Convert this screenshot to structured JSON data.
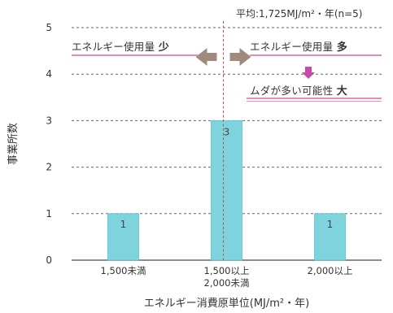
{
  "chart_data": {
    "type": "bar",
    "categories": [
      "1,500未満",
      "1,500以上\n2,000未満",
      "2,000以上"
    ],
    "values": [
      1,
      3,
      1
    ],
    "data_labels": [
      "1",
      "3",
      "1"
    ],
    "xlabel": "エネルギー消費原単位(MJ/m²・年)",
    "ylabel": "事業所数",
    "ylim": [
      0,
      5
    ],
    "yticks": [
      0,
      1,
      2,
      3,
      4,
      5
    ],
    "grid": true,
    "average": {
      "value": 1725,
      "note": "平均:1,725MJ/m²・年(n=5)"
    },
    "annotations": {
      "left": {
        "text": "エネルギー使用量",
        "emphasis": "少"
      },
      "right": {
        "text": "エネルギー使用量",
        "emphasis": "多"
      },
      "waste": {
        "text": "ムダが多い可能性",
        "emphasis": "大"
      }
    }
  },
  "colors": {
    "bar": "#7fd3dd",
    "bar_edge": "#5bc2cf",
    "grid": "#666666",
    "avg_line": "#c0504d",
    "arrow": "#a08a7e",
    "pink": "#c84aa6",
    "pink_line": "#e58bc2"
  }
}
